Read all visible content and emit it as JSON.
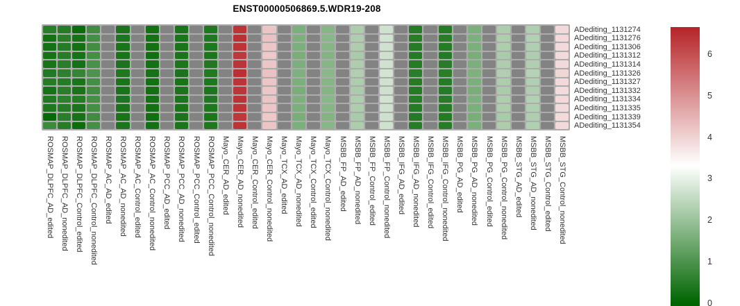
{
  "title": "ENST00000506869.5.WDR19-208",
  "chart_data": {
    "type": "heatmap",
    "title": "ENST00000506869.5.WDR19-208",
    "legend_position": "right",
    "grid": false,
    "na_color": "#838383",
    "palette": {
      "low": "#006400",
      "mid": "#ffffff",
      "high": "#b62427"
    },
    "scale": {
      "vmin": 0,
      "vmid": 3.325,
      "vmax": 6.65
    },
    "colorbar_ticks": [
      6,
      5,
      4,
      3,
      2,
      1,
      0
    ],
    "rows": [
      "ADediting_1131274",
      "ADediting_1131276",
      "ADediting_1131306",
      "ADediting_1131312",
      "ADediting_1131314",
      "ADediting_1131326",
      "ADediting_1131327",
      "ADediting_1131332",
      "ADediting_1131334",
      "ADediting_1131335",
      "ADediting_1131339",
      "ADediting_1131354"
    ],
    "columns": [
      {
        "label": "ROSMAP_DLPFC_AD_edited",
        "values": [
          0.55,
          0.25,
          0.28,
          0.3,
          0.32,
          0.45,
          0.5,
          0.3,
          0.45,
          0.4,
          0.1,
          0.8
        ]
      },
      {
        "label": "ROSMAP_DLPFC_AD_nonedited",
        "values": [
          0.5,
          0.55,
          0.5,
          0.52,
          0.55,
          0.6,
          0.5,
          0.55,
          0.6,
          0.5,
          0.55,
          0.52
        ]
      },
      {
        "label": "ROSMAP_DLPFC_Control_edited",
        "values": [
          0.15,
          0.3,
          0.25,
          0.3,
          0.28,
          0.7,
          0.35,
          0.32,
          0.5,
          0.35,
          0.3,
          0.18
        ]
      },
      {
        "label": "ROSMAP_DLPFC_Control_nonedited",
        "values": [
          0.85,
          0.9,
          0.88,
          0.9,
          0.95,
          1.0,
          0.9,
          0.85,
          0.92,
          0.9,
          0.85,
          0.9
        ]
      },
      {
        "label": "ROSMAP_AC_AD_edited",
        "values": [
          null,
          null,
          null,
          null,
          null,
          null,
          null,
          null,
          null,
          null,
          null,
          null
        ]
      },
      {
        "label": "ROSMAP_AC_AD_nonedited",
        "values": [
          0.35,
          0.38,
          0.35,
          0.32,
          0.35,
          0.4,
          0.35,
          0.33,
          0.38,
          0.35,
          0.32,
          0.36
        ]
      },
      {
        "label": "ROSMAP_AC_Control_edited",
        "values": [
          null,
          null,
          null,
          null,
          null,
          null,
          null,
          null,
          null,
          null,
          null,
          null
        ]
      },
      {
        "label": "ROSMAP_AC_Control_nonedited",
        "values": [
          0.25,
          0.28,
          0.25,
          0.22,
          0.25,
          0.3,
          0.25,
          0.24,
          0.28,
          0.25,
          0.22,
          0.26
        ]
      },
      {
        "label": "ROSMAP_PCC_AD_edited",
        "values": [
          null,
          null,
          null,
          null,
          null,
          null,
          null,
          null,
          null,
          null,
          null,
          null
        ]
      },
      {
        "label": "ROSMAP_PCC_AD_nonedited",
        "values": [
          0.35,
          0.36,
          0.34,
          0.35,
          0.38,
          0.35,
          0.33,
          0.35,
          0.37,
          0.34,
          0.35,
          0.36
        ]
      },
      {
        "label": "ROSMAP_PCC_Control_edited",
        "values": [
          null,
          null,
          null,
          null,
          null,
          null,
          null,
          null,
          null,
          null,
          null,
          null
        ]
      },
      {
        "label": "ROSMAP_PCC_Control_nonedited",
        "values": [
          0.4,
          0.42,
          0.4,
          0.38,
          0.42,
          0.45,
          0.4,
          0.38,
          0.42,
          0.4,
          0.38,
          0.41
        ]
      },
      {
        "label": "Mayo_CER_AD_edited",
        "values": [
          null,
          null,
          null,
          null,
          null,
          null,
          null,
          null,
          null,
          null,
          null,
          null
        ]
      },
      {
        "label": "Mayo_CER_AD_nonedited",
        "values": [
          6.4,
          6.45,
          6.4,
          6.35,
          6.4,
          6.45,
          6.4,
          6.38,
          6.42,
          6.4,
          6.35,
          6.4
        ]
      },
      {
        "label": "Mayo_CER_Control_edited",
        "values": [
          null,
          null,
          null,
          null,
          null,
          null,
          null,
          null,
          null,
          null,
          null,
          null
        ]
      },
      {
        "label": "Mayo_CER_Control_nonedited",
        "values": [
          4.2,
          4.25,
          4.2,
          4.15,
          4.2,
          4.25,
          4.2,
          4.18,
          4.22,
          4.2,
          4.15,
          4.2
        ]
      },
      {
        "label": "Mayo_TCX_AD_edited",
        "values": [
          null,
          null,
          null,
          null,
          null,
          null,
          null,
          null,
          null,
          null,
          null,
          null
        ]
      },
      {
        "label": "Mayo_TCX_AD_nonedited",
        "values": [
          1.6,
          1.62,
          1.6,
          1.58,
          1.6,
          1.65,
          1.6,
          1.58,
          1.62,
          1.6,
          1.58,
          1.6
        ]
      },
      {
        "label": "Mayo_TCX_Control_edited",
        "values": [
          null,
          null,
          null,
          null,
          null,
          null,
          null,
          null,
          null,
          null,
          null,
          null
        ]
      },
      {
        "label": "Mayo_TCX_Control_nonedited",
        "values": [
          1.75,
          1.78,
          1.75,
          1.72,
          1.75,
          1.8,
          1.75,
          1.73,
          1.77,
          1.75,
          1.72,
          1.76
        ]
      },
      {
        "label": "MSBB_FP_AD_edited",
        "values": [
          null,
          null,
          null,
          null,
          null,
          null,
          null,
          null,
          null,
          null,
          null,
          null
        ]
      },
      {
        "label": "MSBB_FP_AD_nonedited",
        "values": [
          2.25,
          2.28,
          2.25,
          2.22,
          2.25,
          2.3,
          2.25,
          2.23,
          2.27,
          2.25,
          2.22,
          2.26
        ]
      },
      {
        "label": "MSBB_FP_Control_edited",
        "values": [
          null,
          null,
          null,
          null,
          null,
          null,
          null,
          null,
          null,
          null,
          null,
          null
        ]
      },
      {
        "label": "MSBB_FP_Control_nonedited",
        "values": [
          2.7,
          2.72,
          2.7,
          2.68,
          2.7,
          2.75,
          2.7,
          2.68,
          2.72,
          2.7,
          2.68,
          2.7
        ]
      },
      {
        "label": "MSBB_IFG_AD_edited",
        "values": [
          null,
          null,
          null,
          null,
          null,
          null,
          null,
          null,
          null,
          null,
          null,
          null
        ]
      },
      {
        "label": "MSBB_IFG_AD_nonedited",
        "values": [
          0.5,
          0.52,
          0.5,
          0.48,
          0.5,
          0.55,
          0.5,
          0.48,
          0.52,
          0.5,
          0.48,
          0.51
        ]
      },
      {
        "label": "MSBB_IFG_Control_edited",
        "values": [
          null,
          null,
          null,
          null,
          null,
          null,
          null,
          null,
          null,
          null,
          null,
          null
        ]
      },
      {
        "label": "MSBB_IFG_Control_nonedited",
        "values": [
          0.5,
          0.53,
          0.5,
          0.48,
          0.52,
          0.55,
          0.5,
          0.49,
          0.52,
          0.5,
          0.48,
          0.51
        ]
      },
      {
        "label": "MSBB_PG_AD_edited",
        "values": [
          null,
          null,
          null,
          null,
          null,
          null,
          null,
          null,
          null,
          null,
          null,
          null
        ]
      },
      {
        "label": "MSBB_PG_AD_nonedited",
        "values": [
          1.6,
          1.62,
          1.6,
          1.58,
          1.6,
          1.65,
          1.6,
          1.58,
          1.62,
          1.6,
          1.58,
          1.6
        ]
      },
      {
        "label": "MSBB_PG_Control_edited",
        "values": [
          null,
          null,
          null,
          null,
          null,
          null,
          null,
          null,
          null,
          null,
          null,
          null
        ]
      },
      {
        "label": "MSBB_PG_Control_nonedited",
        "values": [
          2.25,
          2.27,
          2.25,
          2.23,
          2.25,
          2.3,
          2.25,
          2.23,
          2.27,
          2.25,
          2.22,
          2.26
        ]
      },
      {
        "label": "MSBB_STG_AD_edited",
        "values": [
          null,
          null,
          null,
          null,
          null,
          null,
          null,
          null,
          null,
          null,
          null,
          null
        ]
      },
      {
        "label": "MSBB_STG_AD_nonedited",
        "values": [
          2.3,
          2.32,
          2.3,
          2.28,
          2.3,
          2.35,
          2.3,
          2.28,
          2.32,
          2.3,
          2.28,
          2.31
        ]
      },
      {
        "label": "MSBB_STG_Control_edited",
        "values": [
          null,
          null,
          null,
          null,
          null,
          null,
          null,
          null,
          null,
          null,
          null,
          null
        ]
      },
      {
        "label": "MSBB_STG_Control_nonedited",
        "values": [
          3.9,
          3.92,
          3.9,
          3.88,
          3.9,
          3.95,
          3.9,
          3.88,
          3.92,
          3.9,
          3.88,
          3.9
        ]
      }
    ]
  }
}
